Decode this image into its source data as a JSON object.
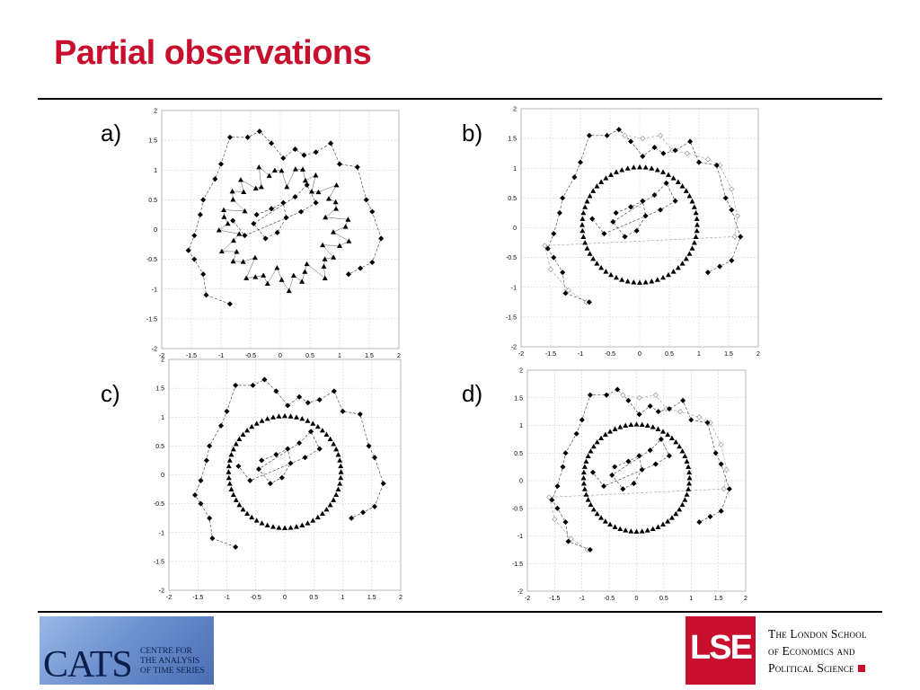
{
  "slide": {
    "title": "Partial observations"
  },
  "panels": [
    {
      "id": "a",
      "label": "a)"
    },
    {
      "id": "b",
      "label": "b)"
    },
    {
      "id": "c",
      "label": "c)"
    },
    {
      "id": "d",
      "label": "d)"
    }
  ],
  "chart_data": [
    {
      "type": "scatter",
      "panel": "a",
      "xlim": [
        -2,
        2
      ],
      "ylim": [
        -2,
        2
      ],
      "grid": true,
      "xticks": [
        "-2",
        "-1.5",
        "-1",
        "-0.5",
        "0",
        "0.5",
        "1",
        "1.5",
        "2"
      ],
      "yticks": [
        "-2",
        "-1.5",
        "-1",
        "-0.5",
        "0",
        "0.5",
        "1",
        "1.5",
        "2"
      ]
    },
    {
      "type": "scatter",
      "panel": "b",
      "xlim": [
        -2,
        2
      ],
      "ylim": [
        -2,
        2
      ],
      "grid": true,
      "xticks": [
        "-2",
        "-1.5",
        "-1",
        "-0.5",
        "0",
        "0.5",
        "1",
        "1.5",
        "2"
      ],
      "yticks": [
        "-2",
        "-1.5",
        "-1",
        "-0.5",
        "0",
        "0.5",
        "1",
        "1.5",
        "2"
      ]
    },
    {
      "type": "scatter",
      "panel": "c",
      "xlim": [
        -2,
        2
      ],
      "ylim": [
        -2,
        2
      ],
      "grid": true,
      "xticks": [
        "-2",
        "-1.5",
        "-1",
        "-0.5",
        "0",
        "0.5",
        "1",
        "1.5",
        "2"
      ],
      "yticks": [
        "-2",
        "-1.5",
        "-1",
        "-0.5",
        "0",
        "0.5",
        "1",
        "1.5",
        "2"
      ]
    },
    {
      "type": "scatter",
      "panel": "d",
      "xlim": [
        -2,
        2
      ],
      "ylim": [
        -2,
        2
      ],
      "grid": true,
      "xticks": [
        "-2",
        "-1.5",
        "-1",
        "-0.5",
        "0",
        "0.5",
        "1",
        "1.5",
        "2"
      ],
      "yticks": [
        "-2",
        "-1.5",
        "-1",
        "-0.5",
        "0",
        "0.5",
        "1",
        "1.5",
        "2"
      ]
    }
  ],
  "logos": {
    "cats": {
      "abbr": "CATS",
      "line1": "CENTRE FOR",
      "line2": "THE ANALYSIS",
      "line3": "OF TIME SERIES"
    },
    "lse": {
      "abbr": "LSE",
      "line1": "The London School",
      "line2": "of Economics and",
      "line3": "Political Science"
    }
  },
  "colors": {
    "title": "#c8102e",
    "lse_red": "#c8102e"
  }
}
